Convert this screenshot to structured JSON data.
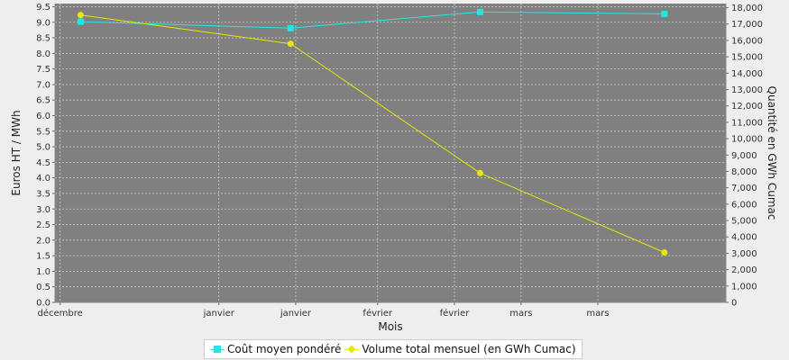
{
  "chart_data": {
    "type": "line",
    "categories": [
      "décembre",
      "janvier",
      "janvier",
      "février",
      "février",
      "mars",
      "mars"
    ],
    "xlabel": "Mois",
    "ylabel": "Euros HT / MWh",
    "ylabel_right": "Quantité en GWh Cumac",
    "ylim": [
      0,
      9.6
    ],
    "ylim_right": [
      0,
      18250
    ],
    "yticks": [
      "0.0",
      "0.5",
      "1.0",
      "1.5",
      "2.0",
      "2.5",
      "3.0",
      "3.5",
      "4.0",
      "4.5",
      "5.0",
      "5.5",
      "6.0",
      "6.5",
      "7.0",
      "7.5",
      "8.0",
      "8.5",
      "9.0",
      "9.5"
    ],
    "yticks_right": [
      "0",
      "1,000",
      "2,000",
      "3,000",
      "4,000",
      "5,000",
      "6,000",
      "7,000",
      "8,000",
      "9,000",
      "10,000",
      "11,000",
      "12,000",
      "13,000",
      "14,000",
      "15,000",
      "16,000",
      "17,000",
      "18,000"
    ],
    "grid": true,
    "legend_position": "bottom",
    "series": [
      {
        "name": "Coût moyen pondéré",
        "axis": "left",
        "color": "#22e6e6",
        "marker": "square",
        "x": [
          "2022-12-05",
          "2023-01-15",
          "2023-02-21",
          "2023-03-29"
        ],
        "values": [
          9.02,
          8.81,
          9.33,
          9.27
        ]
      },
      {
        "name": "Volume total mensuel (en GWh Cumac)",
        "axis": "right",
        "color": "#e8e800",
        "marker": "circle",
        "x": [
          "2022-12-05",
          "2023-01-15",
          "2023-02-21",
          "2023-03-29"
        ],
        "values": [
          17550,
          15800,
          7900,
          3050
        ]
      }
    ]
  }
}
